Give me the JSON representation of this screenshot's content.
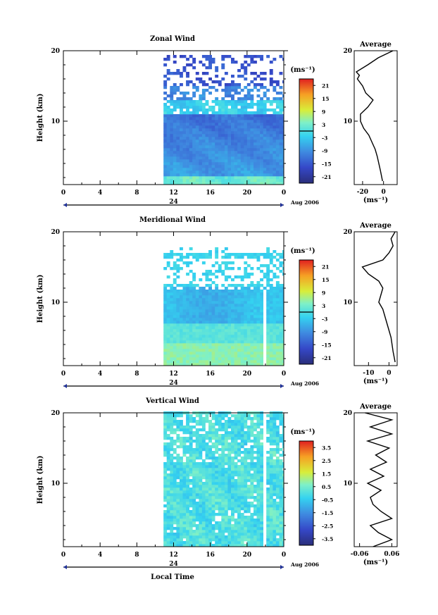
{
  "chart_data": [
    {
      "type": "heatmap",
      "title": "Zonal Wind",
      "ylabel": "Height (km)",
      "xticks": [
        "0",
        "4",
        "8",
        "12",
        "16",
        "20",
        "0"
      ],
      "yticks": [
        "10",
        "20"
      ],
      "xlim": [
        0,
        24
      ],
      "ylim": [
        1,
        20
      ],
      "date_label": "24",
      "date_suffix": "Aug 2006",
      "colorbar": {
        "unit": "(ms⁻¹)",
        "ticks": [
          "21",
          "15",
          "9",
          "3",
          "-3",
          "-9",
          "-15",
          "-21"
        ],
        "range": [
          -24,
          24
        ]
      },
      "data_start_hour": 10.9,
      "average_profile": {
        "title": "Average",
        "xticks": [
          "-20",
          "0"
        ],
        "xlim": [
          -28,
          13
        ],
        "xlabel": "(ms⁻¹)",
        "yticks": [
          "10",
          "20"
        ],
        "heights": [
          1.5,
          3,
          5,
          6,
          7,
          8,
          9,
          10,
          11,
          12,
          13,
          14,
          15,
          16,
          16.5,
          17,
          18,
          19,
          20
        ],
        "values": [
          -1,
          -3,
          -6,
          -8,
          -11,
          -14,
          -19,
          -22,
          -22,
          -15,
          -10,
          -17,
          -20,
          -25,
          -23,
          -26,
          -15,
          -5,
          9
        ]
      }
    },
    {
      "type": "heatmap",
      "title": "Meridional Wind",
      "ylabel": "Height (km)",
      "xticks": [
        "0",
        "4",
        "8",
        "12",
        "16",
        "20",
        "0"
      ],
      "yticks": [
        "10",
        "20"
      ],
      "xlim": [
        0,
        24
      ],
      "ylim": [
        1,
        20
      ],
      "date_label": "24",
      "date_suffix": "Aug 2006",
      "colorbar": {
        "unit": "(ms⁻¹)",
        "ticks": [
          "21",
          "15",
          "9",
          "3",
          "-3",
          "-9",
          "-15",
          "-21"
        ],
        "range": [
          -24,
          24
        ]
      },
      "data_start_hour": 10.9,
      "average_profile": {
        "title": "Average",
        "xticks": [
          "-10",
          "0"
        ],
        "xlim": [
          -17,
          4
        ],
        "xlabel": "(ms⁻¹)",
        "yticks": [
          "10",
          "20"
        ],
        "heights": [
          1.5,
          3,
          5,
          6,
          7,
          8,
          9,
          10,
          11,
          12,
          13,
          14,
          15,
          16,
          17,
          18,
          19,
          20
        ],
        "values": [
          3,
          2,
          1,
          0,
          -1,
          -2,
          -3,
          -5,
          -4,
          -3,
          -5,
          -10,
          -13,
          -3,
          0,
          2,
          1,
          3
        ]
      }
    },
    {
      "type": "heatmap",
      "title": "Vertical Wind",
      "ylabel": "Height (km)",
      "xlabel": "Local Time",
      "xticks": [
        "0",
        "4",
        "8",
        "12",
        "16",
        "20",
        "0"
      ],
      "yticks": [
        "10",
        "20"
      ],
      "xlim": [
        0,
        24
      ],
      "ylim": [
        1,
        20
      ],
      "date_label": "24",
      "date_suffix": "Aug 2006",
      "colorbar": {
        "unit": "(ms⁻¹)",
        "ticks": [
          "3.5",
          "2.5",
          "1.5",
          "0.5",
          "-0.5",
          "-1.5",
          "-2.5",
          "-3.5"
        ],
        "range": [
          -4,
          4
        ]
      },
      "data_start_hour": 10.9,
      "average_profile": {
        "title": "Average",
        "xticks": [
          "-0.06",
          "0.06"
        ],
        "xlim": [
          -0.08,
          0.08
        ],
        "xlabel": "(ms⁻¹)",
        "yticks": [
          "10",
          "20"
        ],
        "heights": [
          1,
          2,
          3,
          4,
          5,
          6,
          7,
          8,
          9,
          10,
          11,
          12,
          13,
          14,
          15,
          16,
          17,
          18,
          19,
          20
        ],
        "values": [
          -0.01,
          0.06,
          0.01,
          -0.02,
          0.06,
          0.02,
          -0.01,
          -0.02,
          0.02,
          -0.03,
          0.03,
          -0.02,
          0.04,
          0.0,
          0.05,
          -0.03,
          0.06,
          -0.02,
          0.06,
          -0.04
        ]
      }
    }
  ]
}
